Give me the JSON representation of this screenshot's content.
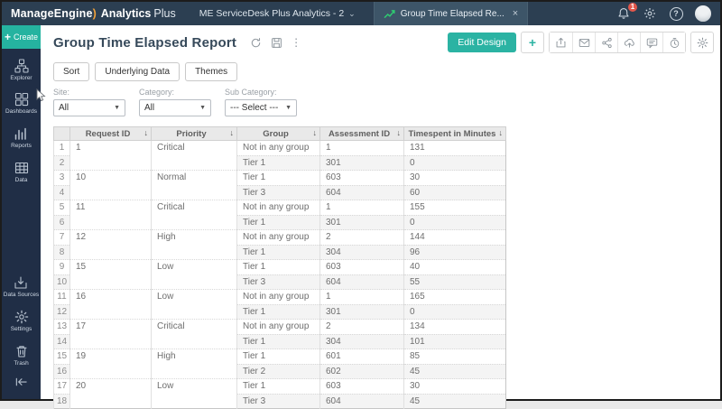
{
  "topbar": {
    "logo": {
      "brand": "ManageEngine",
      "swoosh": ")",
      "product": "Analytics",
      "product_light": "Plus"
    },
    "workspace_selector": "ME ServiceDesk Plus Analytics - 2",
    "tab": {
      "label": "Group Time Elapsed Re...",
      "close_glyph": "×"
    },
    "notification_badge": "1",
    "help_glyph": "?"
  },
  "sidebar": {
    "create_label": "Create",
    "create_plus": "+",
    "items": [
      {
        "label": "Explorer",
        "icon": "explorer-icon"
      },
      {
        "label": "Dashboards",
        "icon": "dashboards-icon"
      },
      {
        "label": "Reports",
        "icon": "reports-icon"
      },
      {
        "label": "Data",
        "icon": "data-icon"
      },
      {
        "label": "Data Sources",
        "icon": "data-sources-icon"
      },
      {
        "label": "Settings",
        "icon": "settings-icon"
      },
      {
        "label": "Trash",
        "icon": "trash-icon"
      }
    ]
  },
  "report_header": {
    "title": "Group Time Elapsed Report",
    "kebab_glyph": "⋮",
    "edit_design_label": "Edit Design",
    "plus_glyph": "+",
    "action_icons": [
      "refresh-icon",
      "save-icon",
      "more-options-icon",
      "add-icon",
      "export-icon",
      "email-icon",
      "share-icon",
      "publish-icon",
      "comment-icon",
      "alert-icon",
      "settings-icon"
    ]
  },
  "toolbar": {
    "buttons": [
      "Sort",
      "Underlying Data",
      "Themes"
    ]
  },
  "filters": [
    {
      "label": "Site:",
      "value": "All"
    },
    {
      "label": "Category:",
      "value": "All"
    },
    {
      "label": "Sub Category:",
      "value": "--- Select ---"
    }
  ],
  "table": {
    "columns": [
      "Request ID",
      "Priority",
      "Group",
      "Assessment ID",
      "Timespent in Minutes"
    ],
    "sort_glyph": "↓",
    "groups": [
      {
        "request_id": "1",
        "priority": "Critical",
        "rows": [
          [
            "Not in any group",
            "1",
            "131"
          ],
          [
            "Tier 1",
            "301",
            "0"
          ]
        ]
      },
      {
        "request_id": "10",
        "priority": "Normal",
        "rows": [
          [
            "Tier 1",
            "603",
            "30"
          ],
          [
            "Tier 3",
            "604",
            "60"
          ]
        ]
      },
      {
        "request_id": "11",
        "priority": "Critical",
        "rows": [
          [
            "Not in any group",
            "1",
            "155"
          ],
          [
            "Tier 1",
            "301",
            "0"
          ]
        ]
      },
      {
        "request_id": "12",
        "priority": "High",
        "rows": [
          [
            "Not in any group",
            "2",
            "144"
          ],
          [
            "Tier 1",
            "304",
            "96"
          ]
        ]
      },
      {
        "request_id": "15",
        "priority": "Low",
        "rows": [
          [
            "Tier 1",
            "603",
            "40"
          ],
          [
            "Tier 3",
            "604",
            "55"
          ]
        ]
      },
      {
        "request_id": "16",
        "priority": "Low",
        "rows": [
          [
            "Not in any group",
            "1",
            "165"
          ],
          [
            "Tier 1",
            "301",
            "0"
          ]
        ]
      },
      {
        "request_id": "17",
        "priority": "Critical",
        "rows": [
          [
            "Not in any group",
            "2",
            "134"
          ],
          [
            "Tier 1",
            "304",
            "101"
          ]
        ]
      },
      {
        "request_id": "19",
        "priority": "High",
        "rows": [
          [
            "Tier 1",
            "601",
            "85"
          ],
          [
            "Tier 2",
            "602",
            "45"
          ]
        ]
      },
      {
        "request_id": "20",
        "priority": "Low",
        "rows": [
          [
            "Tier 1",
            "603",
            "30"
          ],
          [
            "Tier 3",
            "604",
            "45"
          ]
        ]
      }
    ]
  },
  "colors": {
    "accent_teal": "#2bb3a3",
    "topbar_bg": "#2c3f52",
    "active_tab_bg": "#3d5568",
    "sidebar_bg": "#202e46",
    "badge_red": "#e2574b",
    "tab_icon_green": "#2ecc71",
    "header_row_bg": "#e9e9e9",
    "row_stripe": "#f4f4f4"
  }
}
